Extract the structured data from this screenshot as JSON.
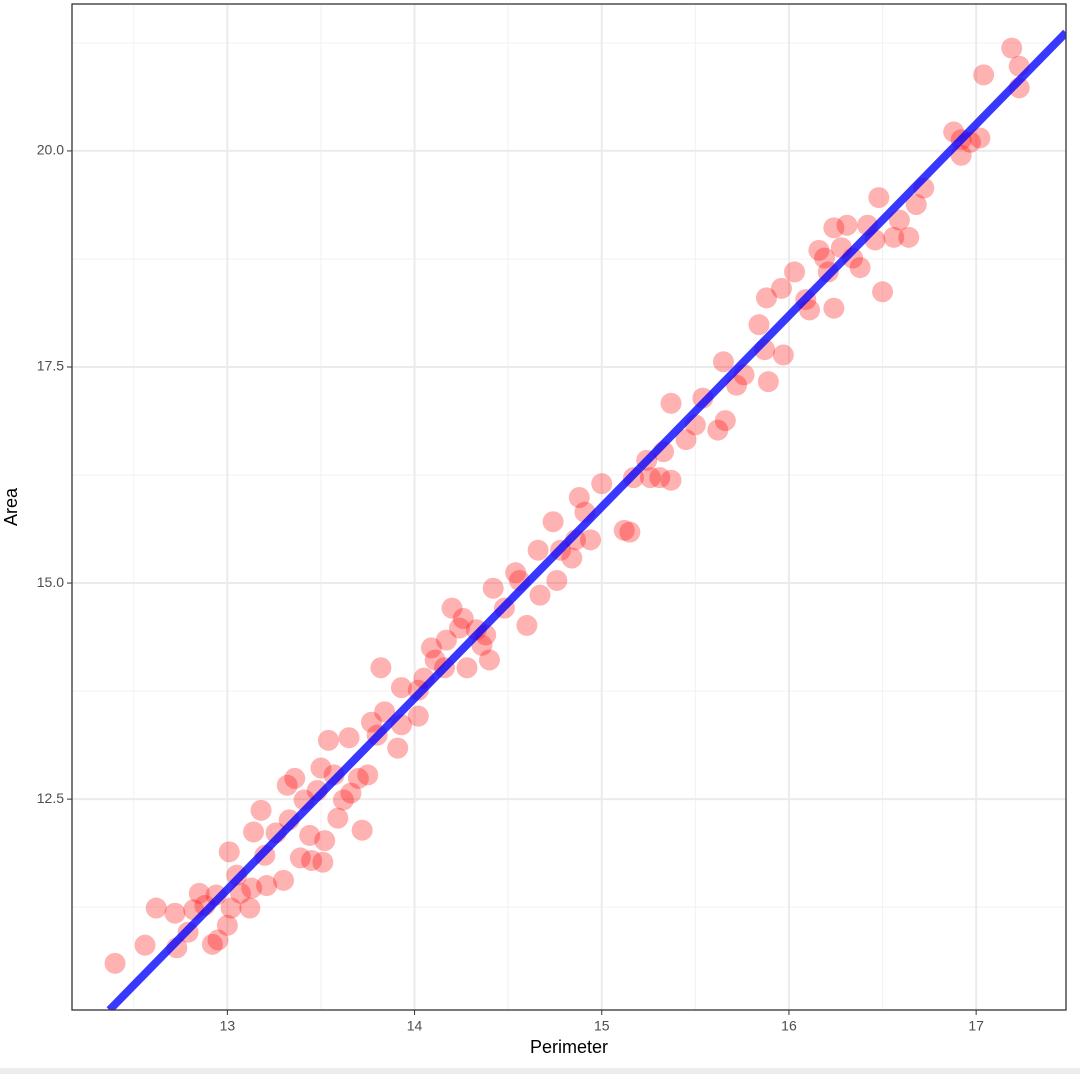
{
  "chart_data": {
    "type": "scatter",
    "x_label": "Perimeter",
    "y_label": "Area",
    "xlim": [
      12.17,
      17.48
    ],
    "ylim": [
      10.06,
      21.7
    ],
    "xticks": [
      13,
      14,
      15,
      16,
      17
    ],
    "yticks": [
      {
        "value": 12.5,
        "label": "12.5"
      },
      {
        "value": 15,
        "label": "15.0"
      },
      {
        "value": 17.5,
        "label": "17.5"
      },
      {
        "value": 20,
        "label": "20.0"
      }
    ],
    "grid": true,
    "color": "#ff0000",
    "opacity": 0.3,
    "x": [
      12.4,
      12.56,
      12.62,
      12.72,
      12.73,
      12.79,
      12.82,
      12.85,
      12.88,
      12.92,
      12.95,
      12.94,
      13.0,
      13.01,
      13.02,
      13.05,
      13.07,
      13.12,
      13.13,
      13.18,
      13.14,
      13.2,
      13.21,
      13.26,
      13.3,
      13.32,
      13.33,
      13.36,
      13.39,
      13.41,
      13.44,
      13.45,
      13.48,
      13.5,
      13.52,
      13.51,
      13.54,
      13.57,
      13.59,
      13.62,
      13.65,
      13.66,
      13.7,
      13.72,
      13.75,
      13.77,
      13.8,
      13.82,
      13.84,
      13.91,
      13.93,
      13.93,
      14.02,
      14.02,
      14.05,
      14.09,
      14.11,
      14.16,
      14.17,
      14.2,
      14.24,
      14.26,
      14.28,
      14.33,
      14.36,
      14.38,
      14.4,
      14.42,
      14.48,
      14.54,
      14.56,
      14.6,
      14.66,
      14.67,
      14.74,
      14.76,
      14.78,
      14.84,
      14.86,
      14.88,
      14.91,
      14.94,
      15.0,
      15.12,
      15.15,
      15.17,
      15.24,
      15.26,
      15.31,
      15.33,
      15.37,
      15.37,
      15.45,
      15.5,
      15.54,
      15.62,
      15.65,
      15.66,
      15.72,
      15.76,
      15.84,
      15.87,
      15.89,
      15.88,
      15.97,
      15.96,
      16.03,
      16.09,
      16.11,
      16.16,
      16.19,
      16.21,
      16.24,
      16.24,
      16.28,
      16.31,
      16.34,
      16.38,
      16.42,
      16.46,
      16.48,
      16.5,
      16.56,
      16.59,
      16.64,
      16.68,
      16.72,
      16.88,
      16.92,
      16.92,
      16.97,
      17.02,
      17.04,
      17.19,
      17.23,
      17.23
    ],
    "values": [
      10.6,
      10.81,
      11.24,
      11.18,
      10.78,
      10.96,
      11.22,
      11.41,
      11.27,
      10.82,
      10.87,
      11.39,
      11.04,
      11.89,
      11.24,
      11.62,
      11.41,
      11.24,
      11.47,
      12.37,
      12.12,
      11.85,
      11.5,
      12.11,
      11.56,
      12.66,
      12.26,
      12.74,
      11.82,
      12.49,
      12.08,
      11.79,
      12.6,
      12.86,
      12.02,
      11.77,
      13.18,
      12.78,
      12.28,
      12.49,
      13.21,
      12.57,
      12.74,
      12.14,
      12.78,
      13.39,
      13.24,
      14.02,
      13.51,
      13.09,
      13.79,
      13.36,
      13.46,
      13.76,
      13.9,
      14.25,
      14.11,
      14.02,
      14.34,
      14.71,
      14.48,
      14.59,
      14.02,
      14.46,
      14.28,
      14.4,
      14.11,
      14.94,
      14.71,
      15.12,
      15.03,
      14.51,
      15.38,
      14.86,
      15.71,
      15.03,
      15.38,
      15.29,
      15.5,
      15.99,
      15.82,
      15.5,
      16.15,
      15.61,
      15.59,
      16.22,
      16.42,
      16.22,
      16.22,
      16.52,
      16.19,
      17.08,
      16.66,
      16.83,
      17.14,
      16.77,
      17.56,
      16.88,
      17.29,
      17.41,
      17.99,
      17.7,
      17.33,
      18.3,
      17.64,
      18.41,
      18.6,
      18.28,
      18.16,
      18.85,
      18.76,
      18.6,
      18.18,
      19.11,
      18.88,
      19.14,
      18.76,
      18.65,
      19.14,
      18.97,
      19.46,
      18.37,
      19.0,
      19.2,
      19.0,
      19.38,
      19.57,
      20.22,
      19.95,
      20.13,
      20.1,
      20.15,
      20.88,
      21.19,
      20.73,
      20.98
    ],
    "trend": {
      "color": "#0000ff",
      "x": [
        12.37,
        17.48
      ],
      "values": [
        10.06,
        21.37
      ]
    }
  }
}
